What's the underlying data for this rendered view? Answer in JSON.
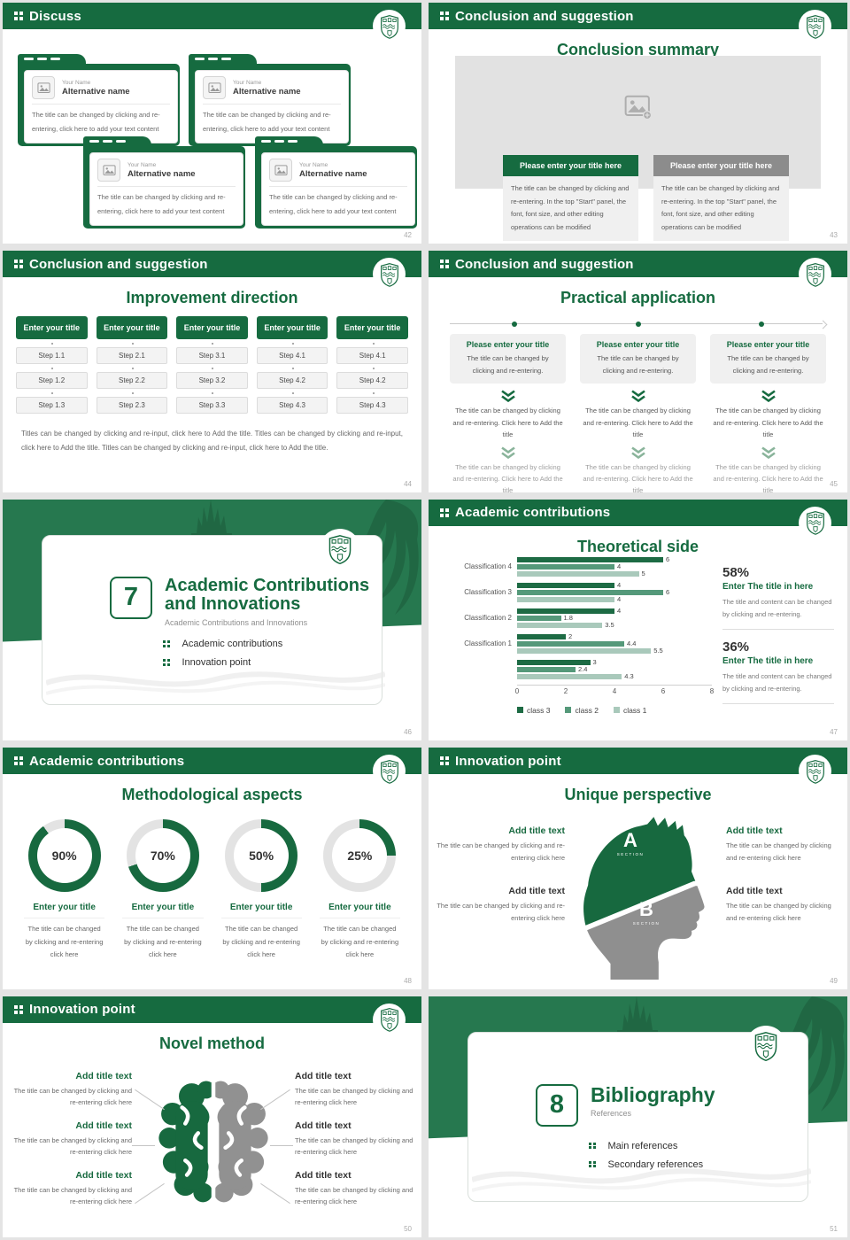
{
  "colors": {
    "primary": "#166b40",
    "section_bg": "#26784f",
    "gray_bar": "#8c8c8c",
    "bar_class3": "#1d6b44",
    "bar_class2": "#55997a",
    "bar_class1": "#a9c9bb",
    "head_gray": "#8f8f8f"
  },
  "common": {
    "your_name": "Your Name",
    "alt_name": "Alternative name",
    "card_body": "The title can be changed by clicking and re-entering, click here to add your text content",
    "modify_body": "The title can be changed by clicking and re-entering. In the top \"Start\" panel, the font, font size, and other editing operations can be modified",
    "enter_title_btn": "Enter your title",
    "please_enter_here": "Please enter your title here",
    "please_enter": "Please enter your title",
    "pa_intro": "The title can be changed by clicking and re-entering.",
    "tier_text": "The title can be changed by clicking and re-entering. Click here to Add the title",
    "add_title": "Add title text",
    "click_here_body": "The title can be changed by clicking and re-entering click here",
    "stat_title": "Enter The title in here",
    "stat_body": "The title and content can be changed by clicking and re-entering.",
    "section_label": "SECTION"
  },
  "slides": {
    "discuss": {
      "header": "Discuss",
      "page": "42"
    },
    "summary": {
      "header": "Conclusion and suggestion",
      "title": "Conclusion summary",
      "page": "43"
    },
    "improvement": {
      "header": "Conclusion and suggestion",
      "title": "Improvement direction",
      "page": "44",
      "steps": [
        [
          "Step 1.1",
          "Step 1.2",
          "Step 1.3"
        ],
        [
          "Step 2.1",
          "Step 2.2",
          "Step 2.3"
        ],
        [
          "Step 3.1",
          "Step 3.2",
          "Step 3.3"
        ],
        [
          "Step 4.1",
          "Step 4.2",
          "Step 4.3"
        ],
        [
          "Step 4.1",
          "Step 4.2",
          "Step 4.3"
        ]
      ],
      "paragraph": "Titles can be changed by clicking and re-input, click here to Add the title. Titles can be changed by clicking and re-input, click here to Add the title. Titles can be changed by clicking and re-input, click here to Add the title."
    },
    "practical": {
      "header": "Conclusion and suggestion",
      "title": "Practical application",
      "page": "45"
    },
    "section7": {
      "number": "7",
      "title_line1": "Academic Contributions",
      "title_line2": "and Innovations",
      "subtitle": "Academic Contributions and Innovations",
      "bullets": [
        "Academic contributions",
        "Innovation point"
      ],
      "page": "46"
    },
    "theoretical": {
      "header": "Academic contributions",
      "title": "Theoretical side",
      "page": "47",
      "stats": [
        {
          "pct": "58%"
        },
        {
          "pct": "36%"
        }
      ]
    },
    "methodological": {
      "header": "Academic contributions",
      "title": "Methodological aspects",
      "page": "48"
    },
    "unique": {
      "header": "Innovation point",
      "title": "Unique perspective",
      "page": "49",
      "a": "A",
      "b": "B"
    },
    "novel": {
      "header": "Innovation point",
      "title": "Novel method",
      "page": "50"
    },
    "section8": {
      "number": "8",
      "title_line1": "Bibliography",
      "subtitle": "References",
      "bullets": [
        "Main references",
        "Secondary references"
      ],
      "page": "51"
    }
  },
  "chart_data": [
    {
      "type": "bar",
      "orientation": "horizontal",
      "title": "Theoretical side",
      "categories": [
        "Classification 4",
        "Classification 3",
        "Classification 2",
        "Classification 1",
        ""
      ],
      "series": [
        {
          "name": "class 3",
          "color": "#1d6b44",
          "values": [
            6,
            4,
            4,
            2,
            3
          ]
        },
        {
          "name": "class 2",
          "color": "#55997a",
          "values": [
            4,
            6,
            1.8,
            4.4,
            2.4
          ]
        },
        {
          "name": "class 1",
          "color": "#a9c9bb",
          "values": [
            5,
            4,
            3.5,
            5.5,
            4.3
          ]
        }
      ],
      "xlim": [
        0,
        8
      ],
      "xticks": [
        0,
        2,
        4,
        6,
        8
      ],
      "grid": false,
      "legend_position": "bottom"
    },
    {
      "type": "donut",
      "title": "Methodological aspects",
      "values": [
        90,
        70,
        50,
        25
      ],
      "labels": [
        "90%",
        "70%",
        "50%",
        "25%"
      ]
    }
  ]
}
